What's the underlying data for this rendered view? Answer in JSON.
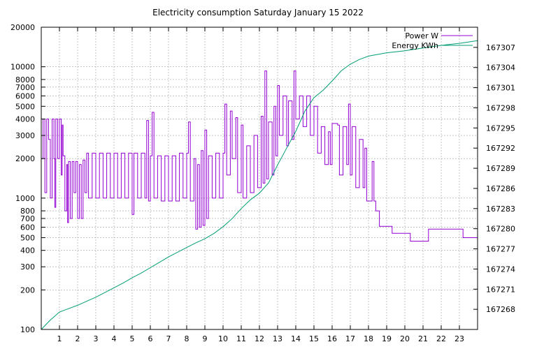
{
  "chart_data": {
    "type": "line",
    "title": "Electricity consumption Saturday January 15 2022",
    "x_ticks": [
      1,
      2,
      3,
      4,
      5,
      6,
      7,
      8,
      9,
      10,
      11,
      12,
      13,
      14,
      15,
      16,
      17,
      18,
      19,
      20,
      21,
      22,
      23
    ],
    "xlim": [
      0,
      24
    ],
    "y_left": {
      "scale": "log",
      "ylim": [
        100,
        20000
      ],
      "ticks": [
        100,
        200,
        300,
        400,
        500,
        600,
        700,
        800,
        1000,
        2000,
        3000,
        4000,
        5000,
        6000,
        7000,
        8000,
        10000,
        20000
      ]
    },
    "y_right": {
      "ylim": [
        167265,
        167310
      ],
      "ticks": [
        167268,
        167271,
        167274,
        167277,
        167280,
        167283,
        167286,
        167289,
        167292,
        167295,
        167298,
        167301,
        167304,
        167307
      ]
    },
    "grid": true,
    "legend_position": "top-right",
    "series": [
      {
        "name": "Power W",
        "color": "#9400d3",
        "axis": "left",
        "style": "fluctuating-steps",
        "values": [
          [
            0.0,
            2000
          ],
          [
            0.1,
            4000
          ],
          [
            0.2,
            1100
          ],
          [
            0.3,
            4000
          ],
          [
            0.4,
            2800
          ],
          [
            0.5,
            1000
          ],
          [
            0.6,
            4000
          ],
          [
            0.7,
            2000
          ],
          [
            0.75,
            850
          ],
          [
            0.8,
            4000
          ],
          [
            0.9,
            2000
          ],
          [
            1.0,
            4000
          ],
          [
            1.1,
            1500
          ],
          [
            1.15,
            3600
          ],
          [
            1.2,
            2100
          ],
          [
            1.3,
            800
          ],
          [
            1.4,
            1800
          ],
          [
            1.45,
            650
          ],
          [
            1.5,
            1900
          ],
          [
            1.6,
            700
          ],
          [
            1.7,
            1900
          ],
          [
            1.8,
            1100
          ],
          [
            1.9,
            1900
          ],
          [
            2.0,
            700
          ],
          [
            2.1,
            1800
          ],
          [
            2.2,
            700
          ],
          [
            2.3,
            1950
          ],
          [
            2.4,
            1100
          ],
          [
            2.5,
            2200
          ],
          [
            2.6,
            1000
          ],
          [
            2.8,
            2200
          ],
          [
            3.0,
            1000
          ],
          [
            3.2,
            2200
          ],
          [
            3.4,
            1000
          ],
          [
            3.6,
            2200
          ],
          [
            3.8,
            1000
          ],
          [
            4.0,
            2200
          ],
          [
            4.2,
            1000
          ],
          [
            4.4,
            2200
          ],
          [
            4.6,
            1000
          ],
          [
            4.8,
            2200
          ],
          [
            5.0,
            750
          ],
          [
            5.1,
            2200
          ],
          [
            5.3,
            1000
          ],
          [
            5.5,
            2200
          ],
          [
            5.7,
            1000
          ],
          [
            5.8,
            3900
          ],
          [
            5.9,
            950
          ],
          [
            6.0,
            2100
          ],
          [
            6.1,
            4500
          ],
          [
            6.2,
            1000
          ],
          [
            6.4,
            2100
          ],
          [
            6.6,
            950
          ],
          [
            6.8,
            2100
          ],
          [
            7.0,
            950
          ],
          [
            7.2,
            2100
          ],
          [
            7.4,
            950
          ],
          [
            7.6,
            2200
          ],
          [
            7.8,
            1000
          ],
          [
            8.0,
            2200
          ],
          [
            8.1,
            3800
          ],
          [
            8.2,
            950
          ],
          [
            8.4,
            2000
          ],
          [
            8.5,
            580
          ],
          [
            8.6,
            1800
          ],
          [
            8.7,
            600
          ],
          [
            8.8,
            2300
          ],
          [
            8.9,
            620
          ],
          [
            9.0,
            3300
          ],
          [
            9.1,
            700
          ],
          [
            9.2,
            2100
          ],
          [
            9.4,
            1000
          ],
          [
            9.6,
            2200
          ],
          [
            9.8,
            1000
          ],
          [
            10.0,
            2200
          ],
          [
            10.1,
            5200
          ],
          [
            10.2,
            1500
          ],
          [
            10.4,
            4600
          ],
          [
            10.5,
            2000
          ],
          [
            10.7,
            4100
          ],
          [
            10.8,
            1100
          ],
          [
            11.0,
            3600
          ],
          [
            11.1,
            1000
          ],
          [
            11.3,
            2500
          ],
          [
            11.5,
            1100
          ],
          [
            11.7,
            3000
          ],
          [
            11.9,
            1200
          ],
          [
            12.1,
            4200
          ],
          [
            12.2,
            1300
          ],
          [
            12.3,
            9300
          ],
          [
            12.4,
            1400
          ],
          [
            12.5,
            3800
          ],
          [
            12.7,
            1500
          ],
          [
            12.8,
            5000
          ],
          [
            12.9,
            2100
          ],
          [
            13.0,
            7200
          ],
          [
            13.1,
            3000
          ],
          [
            13.3,
            6000
          ],
          [
            13.5,
            2500
          ],
          [
            13.6,
            5500
          ],
          [
            13.8,
            2800
          ],
          [
            13.9,
            9300
          ],
          [
            14.0,
            4000
          ],
          [
            14.2,
            6000
          ],
          [
            14.4,
            3500
          ],
          [
            14.6,
            6000
          ],
          [
            14.8,
            3000
          ],
          [
            15.0,
            5000
          ],
          [
            15.2,
            2200
          ],
          [
            15.4,
            3500
          ],
          [
            15.6,
            1800
          ],
          [
            15.8,
            3200
          ],
          [
            15.9,
            1800
          ],
          [
            16.0,
            3700
          ],
          [
            16.3,
            3600
          ],
          [
            16.4,
            1500
          ],
          [
            16.6,
            3500
          ],
          [
            16.8,
            1800
          ],
          [
            16.9,
            5200
          ],
          [
            17.0,
            1500
          ],
          [
            17.1,
            3500
          ],
          [
            17.3,
            1200
          ],
          [
            17.5,
            2800
          ],
          [
            17.7,
            1200
          ],
          [
            17.8,
            2400
          ],
          [
            17.9,
            950
          ],
          [
            18.2,
            1900
          ],
          [
            18.3,
            950
          ],
          [
            18.4,
            800
          ],
          [
            18.6,
            610
          ],
          [
            19.3,
            540
          ],
          [
            20.3,
            470
          ],
          [
            21.3,
            580
          ],
          [
            23.2,
            500
          ],
          [
            24.0,
            500
          ]
        ]
      },
      {
        "name": "Energy KWh",
        "color": "#009e73",
        "axis": "right",
        "style": "line",
        "values": [
          [
            0.0,
            167265
          ],
          [
            0.5,
            167266.4
          ],
          [
            1.0,
            167267.6
          ],
          [
            1.5,
            167268.1
          ],
          [
            2.0,
            167268.6
          ],
          [
            2.5,
            167269.2
          ],
          [
            3.0,
            167269.8
          ],
          [
            3.5,
            167270.5
          ],
          [
            4.0,
            167271.2
          ],
          [
            4.5,
            167271.9
          ],
          [
            5.0,
            167272.7
          ],
          [
            5.5,
            167273.4
          ],
          [
            6.0,
            167274.2
          ],
          [
            6.5,
            167275.0
          ],
          [
            7.0,
            167275.8
          ],
          [
            7.5,
            167276.5
          ],
          [
            8.0,
            167277.2
          ],
          [
            8.5,
            167277.9
          ],
          [
            9.0,
            167278.5
          ],
          [
            9.5,
            167279.3
          ],
          [
            10.0,
            167280.3
          ],
          [
            10.5,
            167281.5
          ],
          [
            11.0,
            167283.0
          ],
          [
            11.5,
            167284.3
          ],
          [
            12.0,
            167285.3
          ],
          [
            12.5,
            167286.8
          ],
          [
            13.0,
            167289.5
          ],
          [
            13.5,
            167292.0
          ],
          [
            14.0,
            167294.5
          ],
          [
            14.5,
            167297.5
          ],
          [
            15.0,
            167299.5
          ],
          [
            15.5,
            167300.6
          ],
          [
            16.0,
            167302.0
          ],
          [
            16.5,
            167303.5
          ],
          [
            17.0,
            167304.5
          ],
          [
            17.5,
            167305.2
          ],
          [
            18.0,
            167305.7
          ],
          [
            19.0,
            167306.2
          ],
          [
            20.0,
            167306.5
          ],
          [
            21.0,
            167306.9
          ],
          [
            22.0,
            167307.3
          ],
          [
            23.0,
            167307.6
          ],
          [
            24.0,
            167308.0
          ]
        ]
      }
    ]
  }
}
